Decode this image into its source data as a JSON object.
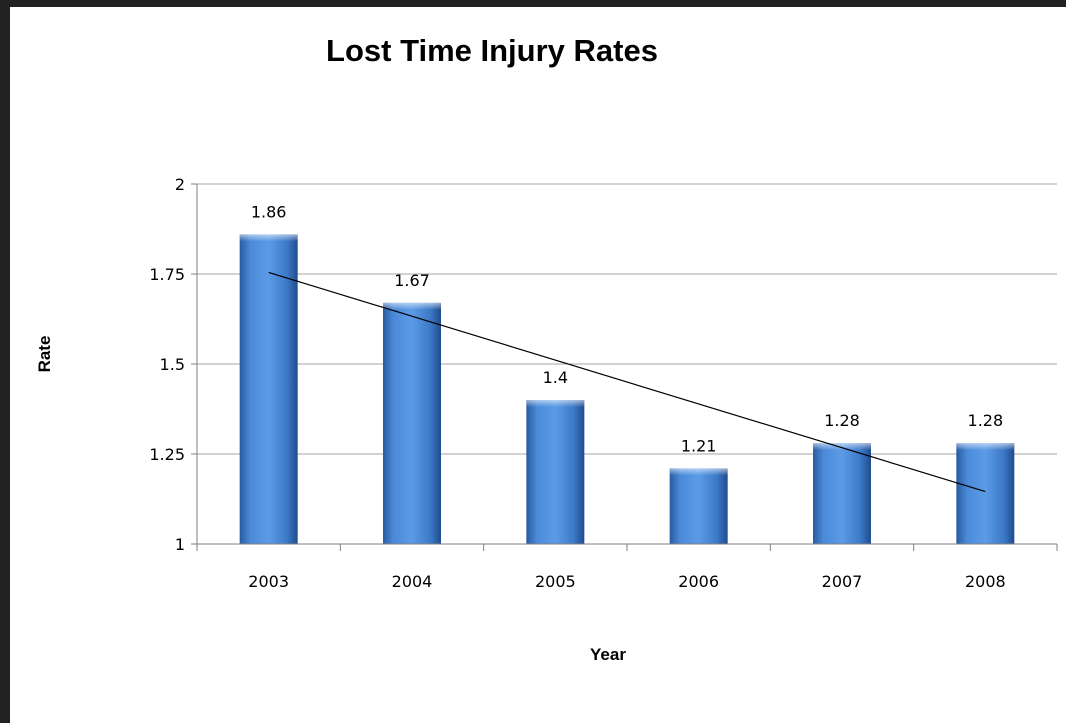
{
  "chart_data": {
    "type": "bar",
    "title": "Lost Time Injury Rates",
    "xlabel": "Year",
    "ylabel": "Rate",
    "categories": [
      "2003",
      "2004",
      "2005",
      "2006",
      "2007",
      "2008"
    ],
    "values": [
      1.86,
      1.67,
      1.4,
      1.21,
      1.28,
      1.28
    ],
    "value_labels": [
      "1.86",
      "1.67",
      "1.4",
      "1.21",
      "1.28",
      "1.28"
    ],
    "ylim": [
      1,
      2
    ],
    "yticks": [
      1,
      1.25,
      1.5,
      1.75,
      2
    ],
    "ytick_labels": [
      "1",
      "1.25",
      "1.5",
      "1.75",
      "2"
    ],
    "grid": true,
    "legend": "none",
    "bar_color": "#3a78c9",
    "trendline": {
      "type": "linear",
      "color": "#000000"
    }
  }
}
